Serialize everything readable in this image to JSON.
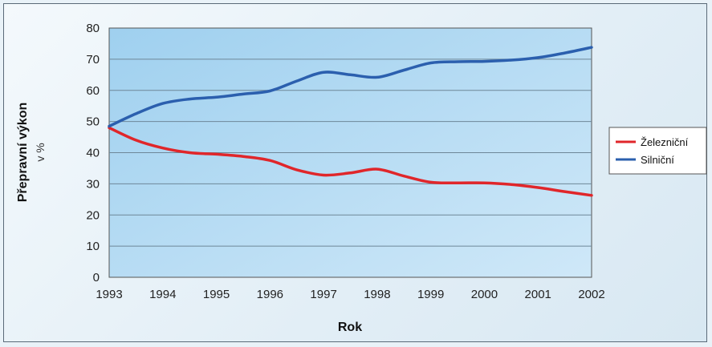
{
  "chart_data": {
    "type": "line",
    "title": "",
    "xlabel": "Rok",
    "ylabel": "Přepravní výkon",
    "yunit": "v %",
    "x": [
      1993,
      1993.5,
      1994,
      1994.5,
      1995,
      1995.5,
      1996,
      1996.5,
      1997,
      1997.5,
      1998,
      1998.5,
      1999,
      1999.5,
      2000,
      2000.5,
      2001,
      2001.5,
      2002
    ],
    "xticks": [
      "1993",
      "1994",
      "1995",
      "1996",
      "1997",
      "1998",
      "1999",
      "2000",
      "2001",
      "2002"
    ],
    "ylim": [
      0,
      80
    ],
    "yticks": [
      "0",
      "10",
      "20",
      "30",
      "40",
      "50",
      "60",
      "70",
      "80"
    ],
    "grid": true,
    "legend_position": "right",
    "series": [
      {
        "name": "Železniční",
        "color": "#e0262a",
        "values": [
          48,
          44,
          41.5,
          40,
          39.5,
          38.8,
          37.5,
          34.5,
          32.8,
          33.5,
          34.7,
          32.5,
          30.5,
          30.3,
          30.3,
          29.8,
          28.8,
          27.5,
          26.3
        ]
      },
      {
        "name": "Silniční",
        "color": "#2b5fae",
        "values": [
          48.5,
          52.5,
          55.8,
          57.2,
          57.8,
          58.8,
          59.8,
          63,
          65.8,
          65,
          64.2,
          66.5,
          68.8,
          69.2,
          69.3,
          69.7,
          70.5,
          72,
          73.8
        ]
      }
    ]
  }
}
